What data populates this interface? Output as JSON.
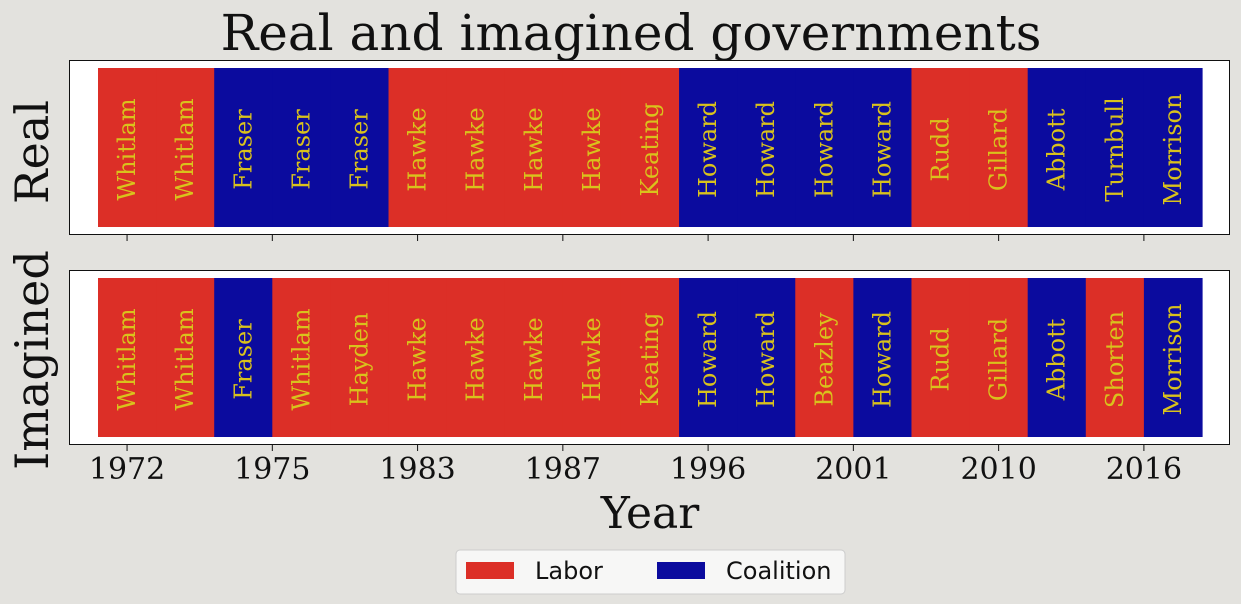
{
  "chart_data": {
    "type": "bar",
    "title": "Real and imagined governments",
    "xlabel": "Year",
    "x_ticks": [
      "1972",
      "1975",
      "1983",
      "1987",
      "1996",
      "2001",
      "2010",
      "2016"
    ],
    "elections": 19,
    "colors": {
      "Labor": "#dc2f27",
      "Coalition": "#0b0b9e",
      "label": "#d9c21c"
    },
    "panels": [
      {
        "ylabel": "Real",
        "governments": [
          {
            "name": "Whitlam",
            "party": "Labor"
          },
          {
            "name": "Whitlam",
            "party": "Labor"
          },
          {
            "name": "Fraser",
            "party": "Coalition"
          },
          {
            "name": "Fraser",
            "party": "Coalition"
          },
          {
            "name": "Fraser",
            "party": "Coalition"
          },
          {
            "name": "Hawke",
            "party": "Labor"
          },
          {
            "name": "Hawke",
            "party": "Labor"
          },
          {
            "name": "Hawke",
            "party": "Labor"
          },
          {
            "name": "Hawke",
            "party": "Labor"
          },
          {
            "name": "Keating",
            "party": "Labor"
          },
          {
            "name": "Howard",
            "party": "Coalition"
          },
          {
            "name": "Howard",
            "party": "Coalition"
          },
          {
            "name": "Howard",
            "party": "Coalition"
          },
          {
            "name": "Howard",
            "party": "Coalition"
          },
          {
            "name": "Rudd",
            "party": "Labor"
          },
          {
            "name": "Gillard",
            "party": "Labor"
          },
          {
            "name": "Abbott",
            "party": "Coalition"
          },
          {
            "name": "Turnbull",
            "party": "Coalition"
          },
          {
            "name": "Morrison",
            "party": "Coalition"
          }
        ]
      },
      {
        "ylabel": "Imagined",
        "governments": [
          {
            "name": "Whitlam",
            "party": "Labor"
          },
          {
            "name": "Whitlam",
            "party": "Labor"
          },
          {
            "name": "Fraser",
            "party": "Coalition"
          },
          {
            "name": "Whitlam",
            "party": "Labor"
          },
          {
            "name": "Hayden",
            "party": "Labor"
          },
          {
            "name": "Hawke",
            "party": "Labor"
          },
          {
            "name": "Hawke",
            "party": "Labor"
          },
          {
            "name": "Hawke",
            "party": "Labor"
          },
          {
            "name": "Hawke",
            "party": "Labor"
          },
          {
            "name": "Keating",
            "party": "Labor"
          },
          {
            "name": "Howard",
            "party": "Coalition"
          },
          {
            "name": "Howard",
            "party": "Coalition"
          },
          {
            "name": "Beazley",
            "party": "Labor"
          },
          {
            "name": "Howard",
            "party": "Coalition"
          },
          {
            "name": "Rudd",
            "party": "Labor"
          },
          {
            "name": "Gillard",
            "party": "Labor"
          },
          {
            "name": "Abbott",
            "party": "Coalition"
          },
          {
            "name": "Shorten",
            "party": "Labor"
          },
          {
            "name": "Morrison",
            "party": "Coalition"
          }
        ]
      }
    ],
    "legend": {
      "entries": [
        "Labor",
        "Coalition"
      ],
      "placement": "bottom-center"
    }
  }
}
